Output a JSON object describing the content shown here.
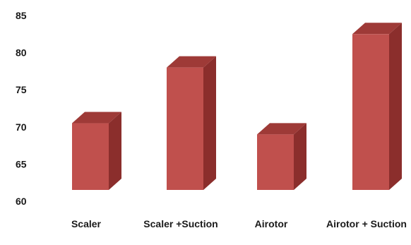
{
  "chart_data": {
    "type": "bar",
    "title": "",
    "xlabel": "",
    "ylabel": "",
    "categories": [
      "Scaler",
      "Scaler +Suction",
      "Airotor",
      "Airotor + Suction"
    ],
    "values": [
      70.5,
      78,
      69,
      82.5
    ],
    "ylim": [
      60,
      85
    ],
    "yticks": [
      "60",
      "65",
      "70",
      "75",
      "80",
      "85"
    ],
    "grid": false,
    "legend": "none",
    "style": "3d-bar",
    "colors": {
      "front": "#c0504d",
      "side": "#8b2e2c",
      "top": "#9e3a37"
    }
  }
}
